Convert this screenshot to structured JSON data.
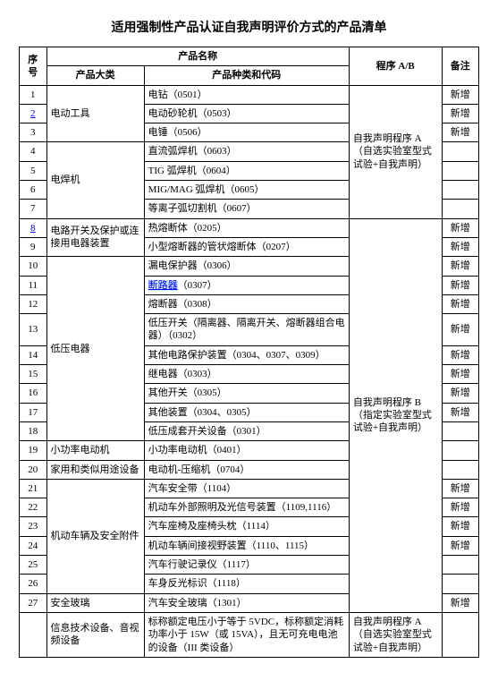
{
  "title": "适用强制性产品认证自我声明评价方式的产品清单",
  "headers": {
    "seq": "序号",
    "name": "产品名称",
    "category": "产品大类",
    "product": "产品种类和代码",
    "procedure": "程序 A/B",
    "note": "备注"
  },
  "procedureA": "自我声明程序 A（自选实验室型式试验+自我声明）",
  "procedureB": "自我声明程序 B（指定实验室型式试验+自我声明）",
  "procedureA2": "自我声明程序 A（自选实验室型式试验+自我声明）",
  "note_new": "新增",
  "cats": {
    "c1": "电动工具",
    "c2": "电焊机",
    "c3": "电路开关及保护或连接用电器装置",
    "c4": "低压电器",
    "c5": "小功率电动机",
    "c6": "家用和类似用途设备",
    "c7": "机动车辆及安全附件",
    "c8": "安全玻璃",
    "c9": "信息技术设备、音视频设备"
  },
  "rows": {
    "r1": "电钻（0501）",
    "r2": "电动砂轮机（0503）",
    "r3": "电锤（0506）",
    "r4": "直流弧焊机（0603）",
    "r5": "TIG 弧焊机（0604）",
    "r6": "MIG/MAG 弧焊机（0605）",
    "r7": "等离子弧切割机（0607）",
    "r8": "热熔断体（0205）",
    "r9": "小型熔断器的管状熔断体（0207）",
    "r10": "漏电保护器（0306）",
    "r11a": "断路器",
    "r11b": "（0307）",
    "r12": "熔断器（0308）",
    "r13": "低压开关（隔离器、隔离开关、熔断器组合电器）（0302）",
    "r14": "其他电路保护装置（0304、0307、0309）",
    "r15": "继电器（0303）",
    "r16": "其他开关（0305）",
    "r17": "其他装置（0304、0305）",
    "r18": "低压成套开关设备（0301）",
    "r19": "小功率电动机（0401）",
    "r20": "电动机-压缩机（0704）",
    "r21": "汽车安全带（1104）",
    "r22": "机动车外部照明及光信号装置（1109,1116）",
    "r23": "汽车座椅及座椅头枕（1114）",
    "r24": "机动车辆间接视野装置（1110、1115）",
    "r25": "汽车行驶记录仪（1117）",
    "r26": "车身反光标识（1118）",
    "r27": "汽车安全玻璃（1301）",
    "r28": "标称额定电压小于等于 5VDC，标称额定消耗功率小于 15W（或 15VA），且无可充电电池的设备（III 类设备）"
  }
}
